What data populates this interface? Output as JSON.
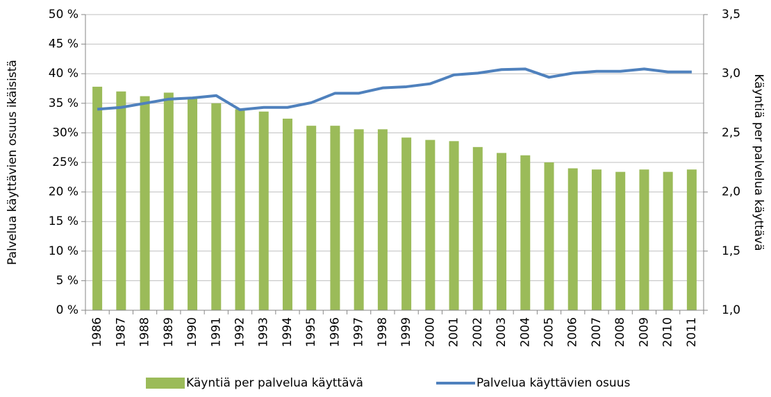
{
  "chart_data": {
    "type": "bar-line",
    "y_label": "Palvelua käyttävien osuus ikäisistä",
    "y2_label": "Käyntiä per palvelua käyttävä",
    "categories": [
      "1986",
      "1987",
      "1988",
      "1989",
      "1990",
      "1991",
      "1992",
      "1993",
      "1994",
      "1995",
      "1996",
      "1997",
      "1998",
      "1999",
      "2000",
      "2001",
      "2002",
      "2003",
      "2004",
      "2005",
      "2006",
      "2007",
      "2008",
      "2009",
      "2010",
      "2011"
    ],
    "series": [
      {
        "name": "Käyntiä per palvelua käyttävä",
        "type": "bar",
        "axis": "y2",
        "color": "#9bbb59",
        "values": [
          2.89,
          2.85,
          2.81,
          2.84,
          2.8,
          2.75,
          2.7,
          2.68,
          2.62,
          2.56,
          2.56,
          2.53,
          2.53,
          2.46,
          2.44,
          2.43,
          2.38,
          2.33,
          2.31,
          2.25,
          2.2,
          2.19,
          2.17,
          2.19,
          2.17,
          2.19
        ]
      },
      {
        "name": "Palvelua käyttävien osuus",
        "type": "line",
        "axis": "y",
        "color": "#4f81bd",
        "values": [
          34.0,
          34.3,
          35.0,
          35.7,
          35.9,
          36.3,
          33.9,
          34.3,
          34.3,
          35.1,
          36.7,
          36.7,
          37.6,
          37.8,
          38.3,
          39.8,
          40.1,
          40.7,
          40.8,
          39.4,
          40.1,
          40.4,
          40.4,
          40.8,
          40.3,
          40.3
        ]
      }
    ],
    "ylim": [
      0,
      50
    ],
    "yticks": [
      {
        "value": 0,
        "label": "0 %"
      },
      {
        "value": 5,
        "label": "5 %"
      },
      {
        "value": 10,
        "label": "10 %"
      },
      {
        "value": 15,
        "label": "15 %"
      },
      {
        "value": 20,
        "label": "20 %"
      },
      {
        "value": 25,
        "label": "25%"
      },
      {
        "value": 30,
        "label": "30%"
      },
      {
        "value": 35,
        "label": "35 %"
      },
      {
        "value": 40,
        "label": "40 %"
      },
      {
        "value": 45,
        "label": "45 %"
      },
      {
        "value": 50,
        "label": "50 %"
      }
    ],
    "y2lim": [
      1.0,
      3.5
    ],
    "y2ticks": [
      {
        "value": 1.0,
        "label": "1,0"
      },
      {
        "value": 1.5,
        "label": "1,5"
      },
      {
        "value": 2.0,
        "label": "2,0"
      },
      {
        "value": 2.5,
        "label": "2,5"
      },
      {
        "value": 3.0,
        "label": "3,0"
      },
      {
        "value": 3.5,
        "label": "3,5"
      }
    ],
    "grid": true
  }
}
